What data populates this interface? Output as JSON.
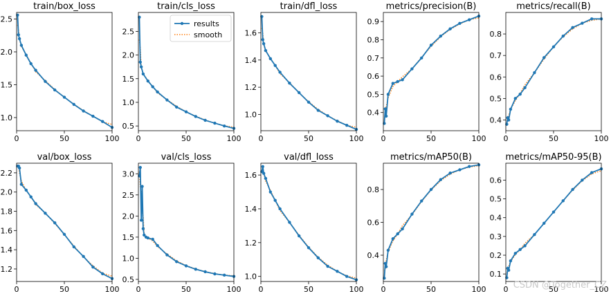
{
  "chart_data": [
    {
      "type": "line",
      "title": "train/box_loss",
      "xlim": [
        0,
        100
      ],
      "ylim": [
        0.8,
        2.6
      ],
      "xticks": [
        0,
        50,
        100
      ],
      "yticks": [
        1.0,
        1.5,
        2.0,
        2.5
      ],
      "ytick_labels": [
        "1.0",
        "1.5",
        "2.0",
        "2.5"
      ],
      "series": [
        {
          "name": "results",
          "x": [
            1,
            2,
            3,
            5,
            10,
            15,
            20,
            30,
            40,
            50,
            60,
            70,
            80,
            90,
            100
          ],
          "y": [
            2.56,
            2.26,
            2.2,
            2.1,
            1.95,
            1.82,
            1.72,
            1.55,
            1.42,
            1.31,
            1.2,
            1.1,
            1.02,
            0.94,
            0.85
          ]
        }
      ]
    },
    {
      "type": "line",
      "title": "train/cls_loss",
      "xlim": [
        0,
        100
      ],
      "ylim": [
        0.4,
        2.9
      ],
      "xticks": [
        0,
        50,
        100
      ],
      "yticks": [
        0.5,
        1.0,
        1.5,
        2.0,
        2.5
      ],
      "ytick_labels": [
        "0.5",
        "1.0",
        "1.5",
        "2.0",
        "2.5"
      ],
      "series": [
        {
          "name": "results",
          "x": [
            1,
            2,
            3,
            5,
            10,
            15,
            20,
            30,
            40,
            50,
            60,
            70,
            80,
            90,
            100
          ],
          "y": [
            2.8,
            1.85,
            1.75,
            1.6,
            1.45,
            1.33,
            1.22,
            1.05,
            0.9,
            0.8,
            0.7,
            0.62,
            0.56,
            0.5,
            0.45
          ]
        }
      ]
    },
    {
      "type": "line",
      "title": "train/dfl_loss",
      "xlim": [
        0,
        100
      ],
      "ylim": [
        0.88,
        1.75
      ],
      "xticks": [
        0,
        50,
        100
      ],
      "yticks": [
        1.0,
        1.2,
        1.4,
        1.6
      ],
      "ytick_labels": [
        "1.0",
        "1.2",
        "1.4",
        "1.6"
      ],
      "series": [
        {
          "name": "results",
          "x": [
            1,
            2,
            3,
            5,
            10,
            15,
            20,
            30,
            40,
            50,
            60,
            70,
            80,
            90,
            100
          ],
          "y": [
            1.72,
            1.55,
            1.52,
            1.47,
            1.41,
            1.36,
            1.31,
            1.23,
            1.16,
            1.09,
            1.03,
            0.99,
            0.95,
            0.92,
            0.89
          ]
        }
      ]
    },
    {
      "type": "line",
      "title": "metrics/precision(B)",
      "xlim": [
        0,
        100
      ],
      "ylim": [
        0.3,
        0.95
      ],
      "xticks": [
        0,
        50,
        100
      ],
      "yticks": [
        0.4,
        0.5,
        0.6,
        0.7,
        0.8,
        0.9
      ],
      "ytick_labels": [
        "0.4",
        "0.5",
        "0.6",
        "0.7",
        "0.8",
        "0.9"
      ],
      "series": [
        {
          "name": "results",
          "x": [
            1,
            2,
            3,
            5,
            10,
            15,
            20,
            30,
            40,
            50,
            60,
            70,
            80,
            90,
            100
          ],
          "y": [
            0.34,
            0.42,
            0.38,
            0.5,
            0.56,
            0.57,
            0.58,
            0.64,
            0.7,
            0.77,
            0.82,
            0.86,
            0.89,
            0.91,
            0.93
          ]
        }
      ]
    },
    {
      "type": "line",
      "title": "metrics/recall(B)",
      "xlim": [
        0,
        100
      ],
      "ylim": [
        0.35,
        0.9
      ],
      "xticks": [
        0,
        50,
        100
      ],
      "yticks": [
        0.4,
        0.5,
        0.6,
        0.7,
        0.8
      ],
      "ytick_labels": [
        "0.4",
        "0.5",
        "0.6",
        "0.7",
        "0.8"
      ],
      "series": [
        {
          "name": "results",
          "x": [
            1,
            2,
            3,
            5,
            10,
            15,
            20,
            30,
            40,
            50,
            60,
            70,
            80,
            90,
            100
          ],
          "y": [
            0.38,
            0.41,
            0.4,
            0.45,
            0.5,
            0.52,
            0.55,
            0.62,
            0.69,
            0.74,
            0.79,
            0.83,
            0.85,
            0.87,
            0.87
          ]
        }
      ]
    },
    {
      "type": "line",
      "title": "val/box_loss",
      "xlim": [
        0,
        100
      ],
      "ylim": [
        1.07,
        2.3
      ],
      "xticks": [
        0,
        50,
        100
      ],
      "yticks": [
        1.2,
        1.4,
        1.6,
        1.8,
        2.0,
        2.2
      ],
      "ytick_labels": [
        "1.2",
        "1.4",
        "1.6",
        "1.8",
        "2.0",
        "2.2"
      ],
      "series": [
        {
          "name": "results",
          "x": [
            1,
            2,
            3,
            5,
            10,
            15,
            20,
            30,
            40,
            50,
            60,
            70,
            80,
            90,
            100
          ],
          "y": [
            2.27,
            2.27,
            2.25,
            2.08,
            2.02,
            1.95,
            1.88,
            1.78,
            1.68,
            1.56,
            1.43,
            1.33,
            1.22,
            1.15,
            1.1
          ]
        }
      ]
    },
    {
      "type": "line",
      "title": "val/cls_loss",
      "xlim": [
        0,
        100
      ],
      "ylim": [
        0.45,
        3.25
      ],
      "xticks": [
        0,
        50,
        100
      ],
      "yticks": [
        0.5,
        1.0,
        1.5,
        2.0,
        2.5,
        3.0
      ],
      "ytick_labels": [
        "0.5",
        "1.0",
        "1.5",
        "2.0",
        "2.5",
        "3.0"
      ],
      "series": [
        {
          "name": "results",
          "x": [
            1,
            2,
            3,
            4,
            5,
            6,
            8,
            10,
            15,
            20,
            30,
            40,
            50,
            60,
            70,
            80,
            90,
            100
          ],
          "y": [
            2.95,
            3.15,
            1.9,
            2.7,
            1.7,
            1.55,
            1.5,
            1.48,
            1.45,
            1.3,
            1.08,
            0.92,
            0.82,
            0.74,
            0.68,
            0.63,
            0.6,
            0.57
          ]
        }
      ]
    },
    {
      "type": "line",
      "title": "val/dfl_loss",
      "xlim": [
        0,
        100
      ],
      "ylim": [
        0.97,
        1.67
      ],
      "xticks": [
        0,
        50,
        100
      ],
      "yticks": [
        1.0,
        1.2,
        1.4,
        1.6
      ],
      "ytick_labels": [
        "1.0",
        "1.2",
        "1.4",
        "1.6"
      ],
      "series": [
        {
          "name": "results",
          "x": [
            1,
            2,
            3,
            5,
            10,
            15,
            20,
            30,
            40,
            50,
            60,
            70,
            80,
            90,
            100
          ],
          "y": [
            1.62,
            1.65,
            1.61,
            1.58,
            1.5,
            1.45,
            1.4,
            1.32,
            1.24,
            1.17,
            1.11,
            1.06,
            1.03,
            1.0,
            0.98
          ]
        }
      ]
    },
    {
      "type": "line",
      "title": "metrics/mAP50(B)",
      "xlim": [
        0,
        100
      ],
      "ylim": [
        0.24,
        0.96
      ],
      "xticks": [
        0,
        50,
        100
      ],
      "yticks": [
        0.4,
        0.6,
        0.8
      ],
      "ytick_labels": [
        "0.4",
        "0.6",
        "0.8"
      ],
      "series": [
        {
          "name": "results",
          "x": [
            1,
            2,
            3,
            5,
            10,
            15,
            20,
            30,
            40,
            50,
            60,
            70,
            80,
            90,
            100
          ],
          "y": [
            0.26,
            0.35,
            0.33,
            0.43,
            0.5,
            0.53,
            0.56,
            0.65,
            0.73,
            0.8,
            0.86,
            0.9,
            0.92,
            0.94,
            0.95
          ]
        }
      ]
    },
    {
      "type": "line",
      "title": "metrics/mAP50-95(B)",
      "xlim": [
        0,
        100
      ],
      "ylim": [
        0.06,
        0.69
      ],
      "xticks": [
        0,
        50,
        100
      ],
      "yticks": [
        0.1,
        0.2,
        0.3,
        0.4,
        0.5,
        0.6
      ],
      "ytick_labels": [
        "0.1",
        "0.2",
        "0.3",
        "0.4",
        "0.5",
        "0.6"
      ],
      "series": [
        {
          "name": "results",
          "x": [
            1,
            2,
            3,
            5,
            10,
            15,
            20,
            30,
            40,
            50,
            60,
            70,
            80,
            90,
            100
          ],
          "y": [
            0.08,
            0.13,
            0.12,
            0.17,
            0.21,
            0.23,
            0.25,
            0.31,
            0.37,
            0.43,
            0.49,
            0.55,
            0.6,
            0.64,
            0.66
          ]
        }
      ]
    }
  ],
  "legend": {
    "results_label": "results",
    "smooth_label": "smooth",
    "placement": "top-right of train/cls_loss"
  },
  "colors": {
    "results": "#1f77b4",
    "smooth": "#ff7f0e"
  },
  "watermark": "CSDN @Together_CZ"
}
